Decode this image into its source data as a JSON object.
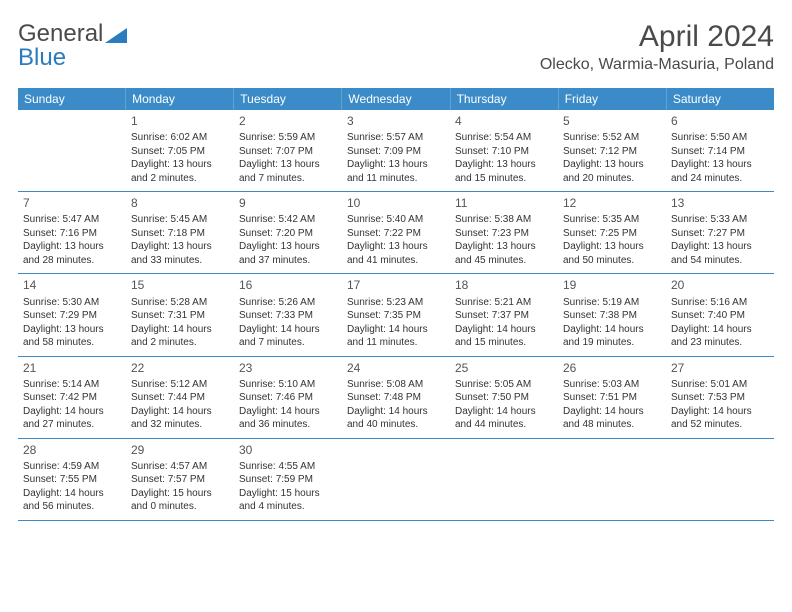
{
  "brand": {
    "text1": "General",
    "text2": "Blue"
  },
  "title": "April 2024",
  "location": "Olecko, Warmia-Masuria, Poland",
  "colors": {
    "header_bg": "#3b8bc9",
    "header_text": "#ffffff",
    "brand_gray": "#4a4a4a",
    "brand_blue": "#2b7bbf",
    "text": "#333333",
    "page_bg": "#ffffff"
  },
  "weekdays": [
    "Sunday",
    "Monday",
    "Tuesday",
    "Wednesday",
    "Thursday",
    "Friday",
    "Saturday"
  ],
  "weeks": [
    [
      {},
      {
        "n": "1",
        "sr": "6:02 AM",
        "ss": "7:05 PM",
        "d1": "Daylight: 13 hours",
        "d2": "and 2 minutes."
      },
      {
        "n": "2",
        "sr": "5:59 AM",
        "ss": "7:07 PM",
        "d1": "Daylight: 13 hours",
        "d2": "and 7 minutes."
      },
      {
        "n": "3",
        "sr": "5:57 AM",
        "ss": "7:09 PM",
        "d1": "Daylight: 13 hours",
        "d2": "and 11 minutes."
      },
      {
        "n": "4",
        "sr": "5:54 AM",
        "ss": "7:10 PM",
        "d1": "Daylight: 13 hours",
        "d2": "and 15 minutes."
      },
      {
        "n": "5",
        "sr": "5:52 AM",
        "ss": "7:12 PM",
        "d1": "Daylight: 13 hours",
        "d2": "and 20 minutes."
      },
      {
        "n": "6",
        "sr": "5:50 AM",
        "ss": "7:14 PM",
        "d1": "Daylight: 13 hours",
        "d2": "and 24 minutes."
      }
    ],
    [
      {
        "n": "7",
        "sr": "5:47 AM",
        "ss": "7:16 PM",
        "d1": "Daylight: 13 hours",
        "d2": "and 28 minutes."
      },
      {
        "n": "8",
        "sr": "5:45 AM",
        "ss": "7:18 PM",
        "d1": "Daylight: 13 hours",
        "d2": "and 33 minutes."
      },
      {
        "n": "9",
        "sr": "5:42 AM",
        "ss": "7:20 PM",
        "d1": "Daylight: 13 hours",
        "d2": "and 37 minutes."
      },
      {
        "n": "10",
        "sr": "5:40 AM",
        "ss": "7:22 PM",
        "d1": "Daylight: 13 hours",
        "d2": "and 41 minutes."
      },
      {
        "n": "11",
        "sr": "5:38 AM",
        "ss": "7:23 PM",
        "d1": "Daylight: 13 hours",
        "d2": "and 45 minutes."
      },
      {
        "n": "12",
        "sr": "5:35 AM",
        "ss": "7:25 PM",
        "d1": "Daylight: 13 hours",
        "d2": "and 50 minutes."
      },
      {
        "n": "13",
        "sr": "5:33 AM",
        "ss": "7:27 PM",
        "d1": "Daylight: 13 hours",
        "d2": "and 54 minutes."
      }
    ],
    [
      {
        "n": "14",
        "sr": "5:30 AM",
        "ss": "7:29 PM",
        "d1": "Daylight: 13 hours",
        "d2": "and 58 minutes."
      },
      {
        "n": "15",
        "sr": "5:28 AM",
        "ss": "7:31 PM",
        "d1": "Daylight: 14 hours",
        "d2": "and 2 minutes."
      },
      {
        "n": "16",
        "sr": "5:26 AM",
        "ss": "7:33 PM",
        "d1": "Daylight: 14 hours",
        "d2": "and 7 minutes."
      },
      {
        "n": "17",
        "sr": "5:23 AM",
        "ss": "7:35 PM",
        "d1": "Daylight: 14 hours",
        "d2": "and 11 minutes."
      },
      {
        "n": "18",
        "sr": "5:21 AM",
        "ss": "7:37 PM",
        "d1": "Daylight: 14 hours",
        "d2": "and 15 minutes."
      },
      {
        "n": "19",
        "sr": "5:19 AM",
        "ss": "7:38 PM",
        "d1": "Daylight: 14 hours",
        "d2": "and 19 minutes."
      },
      {
        "n": "20",
        "sr": "5:16 AM",
        "ss": "7:40 PM",
        "d1": "Daylight: 14 hours",
        "d2": "and 23 minutes."
      }
    ],
    [
      {
        "n": "21",
        "sr": "5:14 AM",
        "ss": "7:42 PM",
        "d1": "Daylight: 14 hours",
        "d2": "and 27 minutes."
      },
      {
        "n": "22",
        "sr": "5:12 AM",
        "ss": "7:44 PM",
        "d1": "Daylight: 14 hours",
        "d2": "and 32 minutes."
      },
      {
        "n": "23",
        "sr": "5:10 AM",
        "ss": "7:46 PM",
        "d1": "Daylight: 14 hours",
        "d2": "and 36 minutes."
      },
      {
        "n": "24",
        "sr": "5:08 AM",
        "ss": "7:48 PM",
        "d1": "Daylight: 14 hours",
        "d2": "and 40 minutes."
      },
      {
        "n": "25",
        "sr": "5:05 AM",
        "ss": "7:50 PM",
        "d1": "Daylight: 14 hours",
        "d2": "and 44 minutes."
      },
      {
        "n": "26",
        "sr": "5:03 AM",
        "ss": "7:51 PM",
        "d1": "Daylight: 14 hours",
        "d2": "and 48 minutes."
      },
      {
        "n": "27",
        "sr": "5:01 AM",
        "ss": "7:53 PM",
        "d1": "Daylight: 14 hours",
        "d2": "and 52 minutes."
      }
    ],
    [
      {
        "n": "28",
        "sr": "4:59 AM",
        "ss": "7:55 PM",
        "d1": "Daylight: 14 hours",
        "d2": "and 56 minutes."
      },
      {
        "n": "29",
        "sr": "4:57 AM",
        "ss": "7:57 PM",
        "d1": "Daylight: 15 hours",
        "d2": "and 0 minutes."
      },
      {
        "n": "30",
        "sr": "4:55 AM",
        "ss": "7:59 PM",
        "d1": "Daylight: 15 hours",
        "d2": "and 4 minutes."
      },
      {},
      {},
      {},
      {}
    ]
  ],
  "labels": {
    "sunrise": "Sunrise:",
    "sunset": "Sunset:"
  }
}
